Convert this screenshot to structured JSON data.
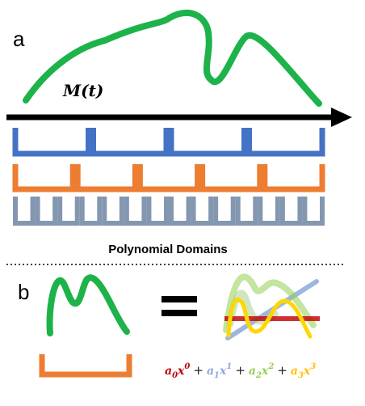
{
  "panel_a": {
    "label": "a",
    "function_label": "M(t)",
    "caption": "Polynomial Domains"
  },
  "panel_b": {
    "label": "b",
    "equals_symbol": "=",
    "terms": [
      {
        "coef": "a",
        "sub": "0",
        "var": "x",
        "exp": "0",
        "color": "#c00000"
      },
      {
        "coef": "a",
        "sub": "1",
        "var": "x",
        "exp": "1",
        "color": "#8eaadb"
      },
      {
        "coef": "a",
        "sub": "2",
        "var": "x",
        "exp": "2",
        "color": "#92d050"
      },
      {
        "coef": "a",
        "sub": "3",
        "var": "x",
        "exp": "3",
        "color": "#ffc000"
      }
    ],
    "plus_symbol": "+"
  },
  "colors": {
    "curve": "#1db34a",
    "axis": "#000000",
    "domain_row_1": "#4472c4",
    "domain_row_2": "#ed7d31",
    "domain_row_3": "#8497b0",
    "divider": "#000000"
  }
}
